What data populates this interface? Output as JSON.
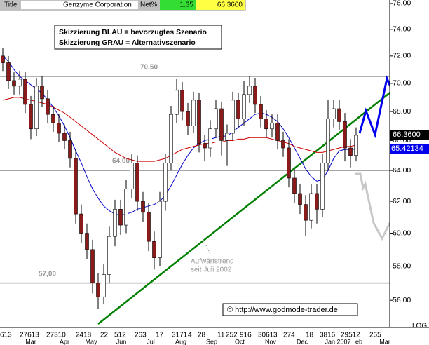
{
  "chart_data": {
    "type": "candlestick",
    "title_tab": "Title",
    "title": "Genzyme Corporation",
    "net_label": "Net%",
    "net_change": 1.35,
    "last_close_label": "66.3600",
    "log_y": true,
    "log_label": "LOG",
    "ylim": [
      54.65,
      76.27
    ],
    "yticks": [
      {
        "value": 56,
        "label": "56.00"
      },
      {
        "value": 58,
        "label": "58.00"
      },
      {
        "value": 60,
        "label": "60.00"
      },
      {
        "value": 62,
        "label": "62.00"
      },
      {
        "value": 64,
        "label": "64.00"
      },
      {
        "value": 66,
        "label": "66.00"
      },
      {
        "value": 68,
        "label": "68.00"
      },
      {
        "value": 70,
        "label": "70.00"
      },
      {
        "value": 72,
        "label": "72.00"
      },
      {
        "value": 74,
        "label": "74.00"
      },
      {
        "value": 76,
        "label": "76.00"
      }
    ],
    "x_day_labels": [
      "613",
      "27613",
      "27310",
      "2418",
      "22",
      "512",
      "263",
      "17",
      "3171",
      "4",
      "28",
      "11",
      "252",
      "916",
      "3061",
      "3",
      "274",
      "18",
      "3816",
      "29512",
      "265"
    ],
    "x_month_labels": [
      "Mar",
      "Apr",
      "May",
      "Jun",
      "Jul",
      "Aug",
      "Sep",
      "Oct",
      "Nov",
      "Dec",
      "Jan 2007",
      "eb",
      "Mar"
    ],
    "levels": [
      {
        "value": 70.5,
        "label": "70,50"
      },
      {
        "value": 64,
        "label": "64,00"
      },
      {
        "value": 57,
        "label": "57,00"
      }
    ],
    "up_color": "#ffffff",
    "down_color": "#8b1a1a",
    "candles": {
      "open": [
        72.0,
        71.5,
        70.2,
        69.8,
        70.3,
        68.5,
        66.8,
        69.8,
        68.9,
        67.8,
        67.2,
        66.5,
        66.0,
        64.8,
        61.2,
        60.0,
        59.0,
        57.0,
        56.2,
        57.5,
        59.8,
        61.5,
        60.5,
        62.8,
        64.5,
        62.0,
        61.3,
        59.5,
        58.5,
        62.0,
        64.5,
        67.8,
        69.5,
        68.0,
        67.0,
        68.8,
        65.8,
        65.5,
        66.8,
        68.2,
        66.0,
        66.5,
        68.8,
        67.5,
        69.2,
        69.8,
        68.5,
        67.5,
        66.8,
        67.2,
        66.0,
        65.5,
        63.5,
        62.5,
        61.8,
        60.8,
        62.5,
        61.5,
        64.5,
        67.5,
        68.2,
        67.3,
        65.5,
        65.0
      ],
      "high": [
        72.6,
        72.0,
        70.8,
        70.9,
        70.8,
        69.1,
        70.4,
        70.5,
        69.5,
        68.4,
        67.8,
        67.1,
        66.6,
        65.4,
        61.8,
        60.6,
        59.6,
        57.6,
        58.1,
        60.4,
        62.1,
        62.1,
        63.4,
        65.1,
        65.0,
        62.6,
        61.9,
        60.1,
        62.6,
        65.1,
        68.4,
        70.3,
        70.1,
        68.6,
        69.4,
        69.3,
        66.4,
        67.4,
        68.8,
        68.7,
        67.1,
        69.4,
        69.3,
        70.2,
        70.5,
        70.4,
        69.1,
        68.1,
        67.8,
        67.8,
        66.6,
        66.1,
        64.1,
        63.1,
        62.4,
        63.1,
        63.1,
        65.1,
        68.8,
        68.8,
        68.8,
        67.9,
        66.1,
        66.9
      ],
      "low": [
        70.9,
        69.6,
        69.2,
        69.2,
        67.9,
        66.1,
        66.3,
        68.3,
        67.2,
        66.6,
        65.9,
        65.4,
        64.2,
        60.6,
        59.4,
        58.4,
        56.4,
        55.5,
        55.8,
        57.0,
        59.2,
        59.9,
        60.0,
        62.2,
        61.4,
        60.7,
        58.9,
        57.8,
        58.0,
        61.4,
        64.0,
        67.2,
        67.4,
        66.4,
        66.5,
        65.2,
        64.6,
        64.9,
        66.2,
        65.0,
        64.3,
        66.0,
        66.9,
        67.0,
        68.6,
        67.9,
        66.9,
        66.2,
        66.2,
        65.4,
        64.9,
        62.9,
        61.9,
        61.2,
        59.8,
        60.3,
        60.6,
        61.0,
        64.0,
        66.9,
        66.7,
        64.6,
        64.2,
        64.6
      ],
      "close": [
        71.5,
        70.2,
        69.8,
        70.3,
        68.5,
        66.8,
        69.8,
        68.9,
        67.8,
        67.2,
        66.5,
        66.0,
        64.8,
        61.2,
        60.0,
        59.0,
        57.0,
        56.2,
        57.5,
        59.8,
        61.5,
        60.5,
        62.8,
        64.5,
        62.0,
        61.3,
        59.5,
        58.5,
        62.0,
        64.5,
        67.8,
        69.5,
        68.0,
        67.0,
        68.8,
        65.8,
        65.5,
        66.8,
        68.2,
        66.0,
        66.5,
        68.8,
        67.5,
        69.2,
        69.8,
        68.5,
        67.5,
        66.8,
        67.2,
        66.0,
        65.5,
        63.5,
        62.5,
        61.8,
        60.8,
        62.5,
        61.5,
        64.5,
        67.5,
        68.2,
        67.3,
        65.5,
        65.0,
        66.36
      ]
    },
    "moving_averages": [
      {
        "color": "#0000cc",
        "values": [
          72,
          71.6,
          71,
          70.5,
          70.2,
          69.9,
          69.6,
          69.3,
          68.8,
          68.3,
          67.7,
          67,
          66.2,
          65.3,
          64.5,
          63.6,
          62.8,
          62.2,
          61.7,
          61.4,
          61.2,
          61.1,
          61.2,
          61.3,
          61.5,
          61.6,
          61.7,
          61.8,
          62.0,
          62.4,
          63.0,
          63.7,
          64.4,
          65.0,
          65.5,
          65.8,
          66.0,
          66.1,
          66.2,
          66.3,
          66.3,
          66.6,
          66.9,
          67.2,
          67.5,
          67.8,
          67.9,
          67.8,
          67.6,
          67.3,
          66.8,
          66.2,
          65.5,
          64.8,
          64.1,
          63.6,
          63.3,
          63.4,
          64.0,
          64.8,
          65.3,
          65.4,
          65.4,
          65.42134
        ]
      },
      {
        "color": "#cc0000",
        "values": [
          68.8,
          68.9,
          69.0,
          69.0,
          68.9,
          68.8,
          68.7,
          68.6,
          68.5,
          68.3,
          68.1,
          67.9,
          67.6,
          67.3,
          67.0,
          66.7,
          66.4,
          66.1,
          65.8,
          65.5,
          65.2,
          65.0,
          64.8,
          64.7,
          64.6,
          64.6,
          64.6,
          64.6,
          64.7,
          64.8,
          65.0,
          65.2,
          65.4,
          65.5,
          65.6,
          65.7,
          65.8,
          65.8,
          65.9,
          65.9,
          66.0,
          66.0,
          66.1,
          66.1,
          66.2,
          66.2,
          66.2,
          66.2,
          66.1,
          66.0,
          65.9,
          65.8,
          65.6,
          65.5,
          65.4,
          65.3,
          65.2,
          65.2,
          65.3,
          65.4,
          65.5,
          65.6,
          65.6,
          65.7
        ]
      }
    ],
    "annotation_lines": [
      "Skizzierung BLAU = bevorzugtes Szenario",
      "Skizzierung GRAU = Alternativszenario"
    ],
    "trend_label": [
      "Aufwärtstrend",
      "seit Juli 2002"
    ],
    "source": "© http://www.godmode-trader.de"
  }
}
